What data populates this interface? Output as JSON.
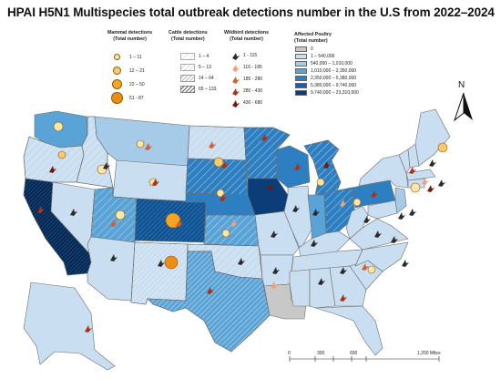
{
  "title": "HPAI H5N1 Multispecies total outbreak detections number in the U.S from 2022–2024",
  "legend": {
    "mammal": {
      "title": "Mammal detections",
      "subtitle": "(Total number)",
      "items": [
        {
          "label": "1 – 11",
          "color": "#fde7a8"
        },
        {
          "label": "12 – 21",
          "color": "#fcca6e"
        },
        {
          "label": "22 – 50",
          "color": "#f6a524"
        },
        {
          "label": "51 - 87",
          "color": "#ef8c12"
        }
      ]
    },
    "cattle": {
      "title": "Cattle detections",
      "subtitle": "(Total number)",
      "items": [
        {
          "label": "1 – 4"
        },
        {
          "label": "5 – 13"
        },
        {
          "label": "14 – 64"
        },
        {
          "label": "65 – 133"
        }
      ]
    },
    "wildbird": {
      "title": "Wildbird detections",
      "subtitle": "(Total number)",
      "items": [
        {
          "label": "1 - 115",
          "color": "#2b2b2b"
        },
        {
          "label": "116 - 185",
          "color": "#e9a27a"
        },
        {
          "label": "185 - 280",
          "color": "#d2612f"
        },
        {
          "label": "280 - 430",
          "color": "#a8331b"
        },
        {
          "label": "430 - 680",
          "color": "#6e1a0c"
        }
      ]
    },
    "poultry": {
      "title": "Affected Poultry",
      "subtitle": "(Total number)",
      "items": [
        {
          "label": "0",
          "color": "#c8c8c8"
        },
        {
          "label": "1 – 540,000",
          "color": "#c9def0"
        },
        {
          "label": "540,000 – 1,010,000",
          "color": "#a6cbe8"
        },
        {
          "label": "1,010,000 – 2,350,000",
          "color": "#5aa3d6"
        },
        {
          "label": "2,350,000 – 5,380,000",
          "color": "#2e7fc2"
        },
        {
          "label": "5,380,000 – 9,740,000",
          "color": "#1763ab"
        },
        {
          "label": "9,740,000 – 23,310,000",
          "color": "#0b3d78"
        }
      ]
    }
  },
  "north_label": "N",
  "scale": {
    "ticks": [
      "0",
      "300",
      "600",
      "1,200 Miles"
    ]
  }
}
